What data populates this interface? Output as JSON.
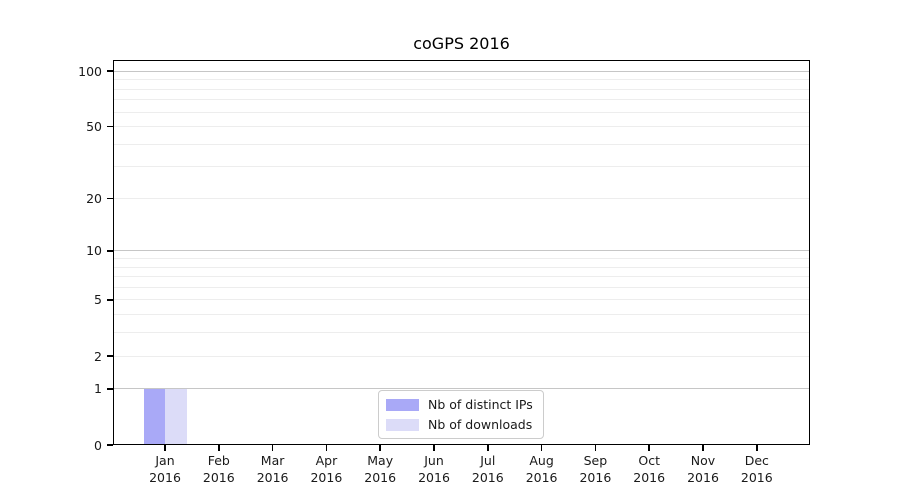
{
  "chart_data": {
    "type": "bar",
    "title": "coGPS 2016",
    "categories": [
      "Jan",
      "Feb",
      "Mar",
      "Apr",
      "May",
      "Jun",
      "Jul",
      "Aug",
      "Sep",
      "Oct",
      "Nov",
      "Dec"
    ],
    "x_axis": {
      "tick_label_year": "2016"
    },
    "y_axis": {
      "scale": "log1p",
      "ylim": [
        0,
        115
      ],
      "tick_values": [
        0,
        1,
        2,
        5,
        10,
        20,
        50,
        100
      ],
      "tick_labels": [
        "0",
        "1",
        "2",
        "5",
        "10",
        "20",
        "50",
        "100"
      ],
      "major_gridlines": [
        1,
        10,
        100
      ],
      "minor_gridlines": [
        2,
        3,
        4,
        5,
        6,
        7,
        8,
        9,
        20,
        30,
        40,
        50,
        60,
        70,
        80,
        90
      ]
    },
    "series": [
      {
        "name": "Nb of distinct IPs",
        "color": "#a9a9f7",
        "values": [
          1,
          0,
          0,
          0,
          0,
          0,
          0,
          0,
          0,
          0,
          0,
          0
        ]
      },
      {
        "name": "Nb of downloads",
        "color": "#dcdcf8",
        "values": [
          1,
          0,
          0,
          0,
          0,
          0,
          0,
          0,
          0,
          0,
          0,
          0
        ]
      }
    ],
    "legend": {
      "position": "lower center",
      "entries": [
        "Nb of distinct IPs",
        "Nb of downloads"
      ]
    },
    "colors": {
      "major_grid": "#c6c6c6",
      "minor_grid": "#ededed",
      "spine": "#000000",
      "text": "#1a1a1a"
    },
    "grid": "on"
  }
}
